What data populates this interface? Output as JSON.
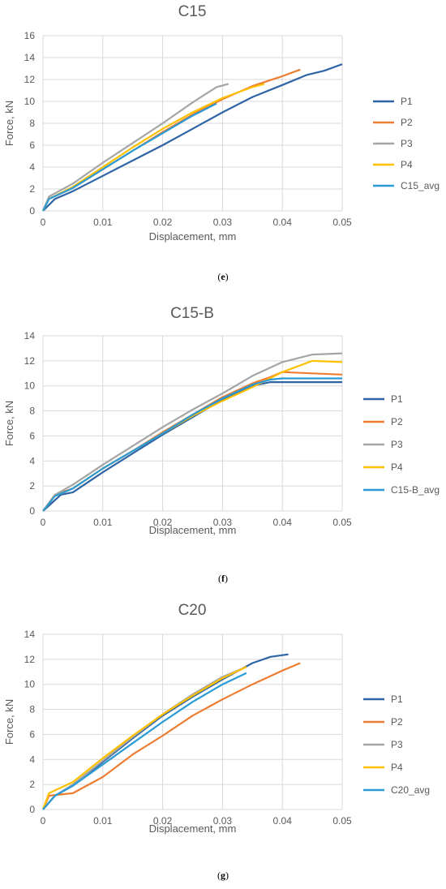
{
  "colors": {
    "P1": "#2e64a6",
    "P2": "#ed7d31",
    "P3": "#a5a5a5",
    "P4": "#ffc000",
    "avg": "#2a9bd6",
    "grid": "#d9d9d9",
    "text": "#595959"
  },
  "chart_data": [
    {
      "type": "line",
      "title": "C15",
      "xlabel": "Displacement, mm",
      "ylabel": "Force, kN",
      "xlim": [
        0,
        0.05
      ],
      "ylim": [
        0,
        16
      ],
      "xticks": [
        "0",
        "0.01",
        "0.02",
        "0.03",
        "0.04",
        "0.05"
      ],
      "yticks": [
        "0",
        "2",
        "4",
        "6",
        "8",
        "10",
        "12",
        "14",
        "16"
      ],
      "grid": true,
      "legend_position": "right",
      "subfigure_label": "e",
      "series": [
        {
          "name": "P1",
          "color_key": "P1",
          "x": [
            0,
            0.002,
            0.005,
            0.01,
            0.015,
            0.02,
            0.025,
            0.03,
            0.035,
            0.04,
            0.044,
            0.047,
            0.05
          ],
          "y": [
            0,
            1.1,
            1.8,
            3.2,
            4.6,
            6.0,
            7.5,
            9.0,
            10.4,
            11.5,
            12.4,
            12.8,
            13.4
          ]
        },
        {
          "name": "P2",
          "color_key": "P2",
          "x": [
            0,
            0.001,
            0.005,
            0.01,
            0.015,
            0.02,
            0.025,
            0.03,
            0.035,
            0.04,
            0.043
          ],
          "y": [
            0,
            1.1,
            2.1,
            3.8,
            5.5,
            7.2,
            8.8,
            10.2,
            11.4,
            12.3,
            12.9
          ]
        },
        {
          "name": "P3",
          "color_key": "P3",
          "x": [
            0,
            0.001,
            0.005,
            0.01,
            0.015,
            0.02,
            0.025,
            0.029,
            0.031
          ],
          "y": [
            0,
            1.3,
            2.5,
            4.4,
            6.2,
            8.0,
            9.9,
            11.3,
            11.6
          ]
        },
        {
          "name": "P4",
          "color_key": "P4",
          "x": [
            0,
            0.001,
            0.005,
            0.01,
            0.015,
            0.02,
            0.025,
            0.03,
            0.035,
            0.037
          ],
          "y": [
            0,
            1.1,
            2.2,
            4.0,
            5.8,
            7.5,
            9.0,
            10.3,
            11.3,
            11.6
          ]
        },
        {
          "name": "C15_avg",
          "color_key": "avg",
          "x": [
            0,
            0.001,
            0.005,
            0.01,
            0.015,
            0.02,
            0.025,
            0.029
          ],
          "y": [
            0,
            1.1,
            2.1,
            3.8,
            5.5,
            7.1,
            8.7,
            9.8
          ]
        }
      ]
    },
    {
      "type": "line",
      "title": "C15-B",
      "xlabel": "Displacement, mm",
      "ylabel": "Force, kN",
      "xlim": [
        0,
        0.05
      ],
      "ylim": [
        0,
        14
      ],
      "xticks": [
        "0",
        "0.01",
        "0.02",
        "0.03",
        "0.04",
        "0.05"
      ],
      "yticks": [
        "0",
        "2",
        "4",
        "6",
        "8",
        "10",
        "12",
        "14"
      ],
      "grid": true,
      "legend_position": "right",
      "subfigure_label": "f",
      "series": [
        {
          "name": "P1",
          "color_key": "P1",
          "x": [
            0,
            0.003,
            0.005,
            0.01,
            0.015,
            0.02,
            0.025,
            0.03,
            0.035,
            0.038,
            0.04,
            0.045,
            0.05
          ],
          "y": [
            0,
            1.3,
            1.5,
            3.1,
            4.6,
            6.1,
            7.5,
            8.9,
            10.0,
            10.3,
            10.3,
            10.3,
            10.3
          ]
        },
        {
          "name": "P2",
          "color_key": "P2",
          "x": [
            0,
            0.002,
            0.005,
            0.01,
            0.015,
            0.02,
            0.025,
            0.03,
            0.035,
            0.038,
            0.04,
            0.045,
            0.05
          ],
          "y": [
            0,
            1.3,
            1.8,
            3.4,
            4.8,
            6.3,
            7.7,
            9.1,
            10.2,
            10.7,
            11.1,
            11.0,
            10.9
          ]
        },
        {
          "name": "P3",
          "color_key": "P3",
          "x": [
            0,
            0.002,
            0.005,
            0.01,
            0.015,
            0.02,
            0.025,
            0.03,
            0.035,
            0.04,
            0.045,
            0.05
          ],
          "y": [
            0,
            1.3,
            2.1,
            3.7,
            5.2,
            6.7,
            8.1,
            9.4,
            10.8,
            11.9,
            12.5,
            12.6
          ]
        },
        {
          "name": "P4",
          "color_key": "P4",
          "x": [
            0,
            0.002,
            0.005,
            0.01,
            0.015,
            0.02,
            0.025,
            0.03,
            0.035,
            0.04,
            0.045,
            0.05
          ],
          "y": [
            0,
            1.2,
            1.8,
            3.4,
            4.8,
            6.2,
            7.6,
            8.8,
            9.9,
            11.1,
            12.0,
            11.9
          ]
        },
        {
          "name": "C15-B_avg",
          "color_key": "avg",
          "x": [
            0,
            0.002,
            0.005,
            0.01,
            0.015,
            0.02,
            0.025,
            0.03,
            0.035,
            0.038,
            0.04,
            0.045,
            0.05
          ],
          "y": [
            0,
            1.2,
            1.8,
            3.4,
            4.8,
            6.2,
            7.7,
            9.0,
            10.1,
            10.5,
            10.6,
            10.6,
            10.6
          ]
        }
      ]
    },
    {
      "type": "line",
      "title": "C20",
      "xlabel": "Displacement, mm",
      "ylabel": "Force, kN",
      "xlim": [
        0,
        0.05
      ],
      "ylim": [
        0,
        14
      ],
      "xticks": [
        "0",
        "0.01",
        "0.02",
        "0.03",
        "0.04",
        "0.05"
      ],
      "yticks": [
        "0",
        "2",
        "4",
        "6",
        "8",
        "10",
        "12",
        "14"
      ],
      "grid": true,
      "legend_position": "right",
      "subfigure_label": "g",
      "series": [
        {
          "name": "P1",
          "color_key": "P1",
          "x": [
            0,
            0.002,
            0.005,
            0.01,
            0.015,
            0.02,
            0.025,
            0.03,
            0.035,
            0.038,
            0.041
          ],
          "y": [
            0,
            1.1,
            1.9,
            3.8,
            5.7,
            7.5,
            9.0,
            10.4,
            11.7,
            12.2,
            12.4
          ]
        },
        {
          "name": "P2",
          "color_key": "P2",
          "x": [
            0,
            0.001,
            0.005,
            0.01,
            0.015,
            0.02,
            0.025,
            0.03,
            0.035,
            0.04,
            0.043
          ],
          "y": [
            0,
            1.1,
            1.3,
            2.6,
            4.4,
            5.9,
            7.5,
            8.8,
            10.0,
            11.1,
            11.7
          ]
        },
        {
          "name": "P3",
          "color_key": "P3",
          "x": [
            0,
            0.002,
            0.005,
            0.01,
            0.015,
            0.02,
            0.025,
            0.03,
            0.034
          ],
          "y": [
            0,
            1.1,
            2.0,
            3.9,
            5.8,
            7.6,
            9.2,
            10.6,
            11.4
          ]
        },
        {
          "name": "P4",
          "color_key": "P4",
          "x": [
            0,
            0.001,
            0.005,
            0.01,
            0.015,
            0.02,
            0.025,
            0.03,
            0.034
          ],
          "y": [
            0,
            1.3,
            2.2,
            4.1,
            5.9,
            7.6,
            9.1,
            10.5,
            11.4
          ]
        },
        {
          "name": "C20_avg",
          "color_key": "avg",
          "x": [
            0,
            0.002,
            0.005,
            0.01,
            0.015,
            0.02,
            0.025,
            0.03,
            0.034
          ],
          "y": [
            0,
            1.1,
            1.9,
            3.6,
            5.3,
            7.0,
            8.6,
            10.0,
            10.9
          ]
        }
      ]
    }
  ]
}
